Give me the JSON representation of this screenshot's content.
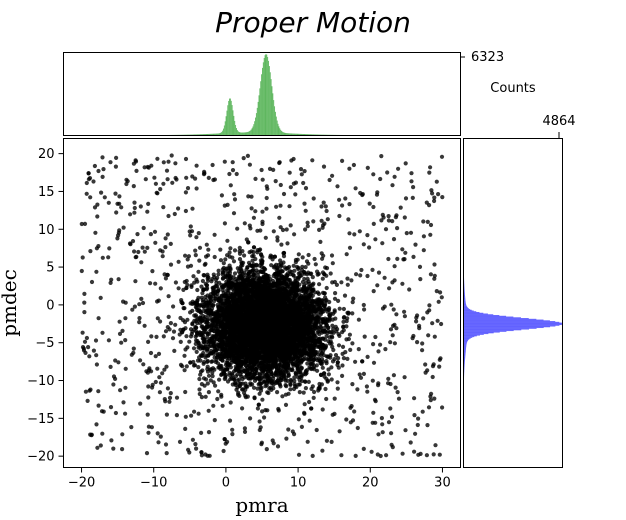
{
  "chart_data": [
    {
      "panel": "main",
      "type": "scatter",
      "title": "Proper Motion",
      "xlabel": "pmra",
      "ylabel": "pmdec",
      "xlim": [
        -22.5,
        32.5
      ],
      "ylim": [
        -21.5,
        22
      ],
      "xticks": [
        -20,
        -10,
        0,
        10,
        20,
        30
      ],
      "yticks": [
        -20,
        -15,
        -10,
        -5,
        0,
        5,
        10,
        15,
        20
      ],
      "point_color": "#000000",
      "distribution": {
        "core_center": [
          5.5,
          -2.5
        ],
        "core_spread": [
          6,
          5
        ],
        "halo_x_range": [
          -20,
          30
        ],
        "halo_y_range": [
          -20,
          20
        ]
      }
    },
    {
      "panel": "top_histogram",
      "type": "bar",
      "variable": "pmra",
      "ymax_label": "6323",
      "ylabel": "Counts",
      "color": "#3aa63a",
      "peaks": [
        {
          "center": 0.5,
          "height": 2800
        },
        {
          "center": 5.5,
          "height": 6323
        }
      ]
    },
    {
      "panel": "right_histogram",
      "type": "bar",
      "orientation": "horizontal",
      "variable": "pmdec",
      "xmax_label": "4864",
      "color": "#4a4aff",
      "peaks": [
        {
          "center": -2.5,
          "height": 4864
        }
      ]
    }
  ]
}
